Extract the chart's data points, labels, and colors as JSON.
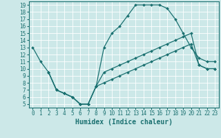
{
  "xlabel": "Humidex (Indice chaleur)",
  "bg_color": "#cce8e8",
  "line_color": "#1a7070",
  "grid_color": "#ffffff",
  "xlim": [
    -0.5,
    23.5
  ],
  "ylim": [
    4.5,
    19.5
  ],
  "xticks": [
    0,
    1,
    2,
    3,
    4,
    5,
    6,
    7,
    8,
    9,
    10,
    11,
    12,
    13,
    14,
    15,
    16,
    17,
    18,
    19,
    20,
    21,
    22,
    23
  ],
  "yticks": [
    5,
    6,
    7,
    8,
    9,
    10,
    11,
    12,
    13,
    14,
    15,
    16,
    17,
    18,
    19
  ],
  "curve1_x": [
    0,
    1,
    2,
    3,
    4,
    5,
    6,
    7,
    8,
    9,
    10,
    11,
    12,
    13,
    14,
    15,
    16,
    17,
    18,
    19,
    20,
    21,
    22,
    23
  ],
  "curve1_y": [
    13,
    11,
    9.5,
    7,
    6.5,
    6,
    5,
    5,
    7.5,
    13,
    15,
    16,
    17.5,
    19,
    19,
    19,
    19,
    18.5,
    17,
    15,
    13,
    11.5,
    11,
    11
  ],
  "curve2_x": [
    2,
    3,
    4,
    5,
    6,
    7,
    8,
    9,
    10,
    11,
    12,
    13,
    14,
    15,
    16,
    17,
    18,
    19,
    20,
    21,
    22,
    23
  ],
  "curve2_y": [
    9.5,
    7,
    6.5,
    6,
    5,
    5,
    7.5,
    9.5,
    10,
    10.5,
    11,
    11.5,
    12,
    12.5,
    13,
    13.5,
    14,
    14.5,
    15,
    10.5,
    10,
    10
  ],
  "curve3_x": [
    2,
    3,
    4,
    5,
    6,
    7,
    8,
    9,
    10,
    11,
    12,
    13,
    14,
    15,
    16,
    17,
    18,
    19,
    20,
    21,
    22,
    23
  ],
  "curve3_y": [
    9.5,
    7,
    6.5,
    6,
    5,
    5,
    7.5,
    8,
    8.5,
    9,
    9.5,
    10,
    10.5,
    11,
    11.5,
    12,
    12.5,
    13,
    13.5,
    10.5,
    10,
    10
  ],
  "xlabel_fontsize": 7,
  "tick_fontsize": 5.5,
  "lw": 0.9,
  "ms": 2.0
}
